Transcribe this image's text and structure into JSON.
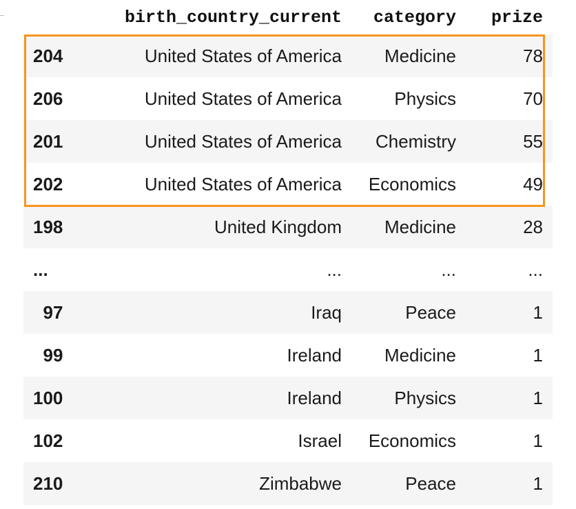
{
  "table": {
    "columns": [
      "",
      "birth_country_current",
      "category",
      "prize"
    ],
    "rows": [
      {
        "index": "204",
        "birth_country_current": "United States of America",
        "category": "Medicine",
        "prize": "78"
      },
      {
        "index": "206",
        "birth_country_current": "United States of America",
        "category": "Physics",
        "prize": "70"
      },
      {
        "index": "201",
        "birth_country_current": "United States of America",
        "category": "Chemistry",
        "prize": "55"
      },
      {
        "index": "202",
        "birth_country_current": "United States of America",
        "category": "Economics",
        "prize": "49"
      },
      {
        "index": "198",
        "birth_country_current": "United Kingdom",
        "category": "Medicine",
        "prize": "28"
      },
      {
        "index": "...",
        "birth_country_current": "...",
        "category": "...",
        "prize": "..."
      },
      {
        "index": "97",
        "birth_country_current": "Iraq",
        "category": "Peace",
        "prize": "1"
      },
      {
        "index": "99",
        "birth_country_current": "Ireland",
        "category": "Medicine",
        "prize": "1"
      },
      {
        "index": "100",
        "birth_country_current": "Ireland",
        "category": "Physics",
        "prize": "1"
      },
      {
        "index": "102",
        "birth_country_current": "Israel",
        "category": "Economics",
        "prize": "1"
      },
      {
        "index": "210",
        "birth_country_current": "Zimbabwe",
        "category": "Peace",
        "prize": "1"
      }
    ]
  },
  "highlight": {
    "color": "#f7941d",
    "rows_highlighted": [
      "204",
      "206",
      "201",
      "202"
    ]
  },
  "colors": {
    "row_stripe": "#f5f5f5",
    "text": "#1a1a1a"
  }
}
